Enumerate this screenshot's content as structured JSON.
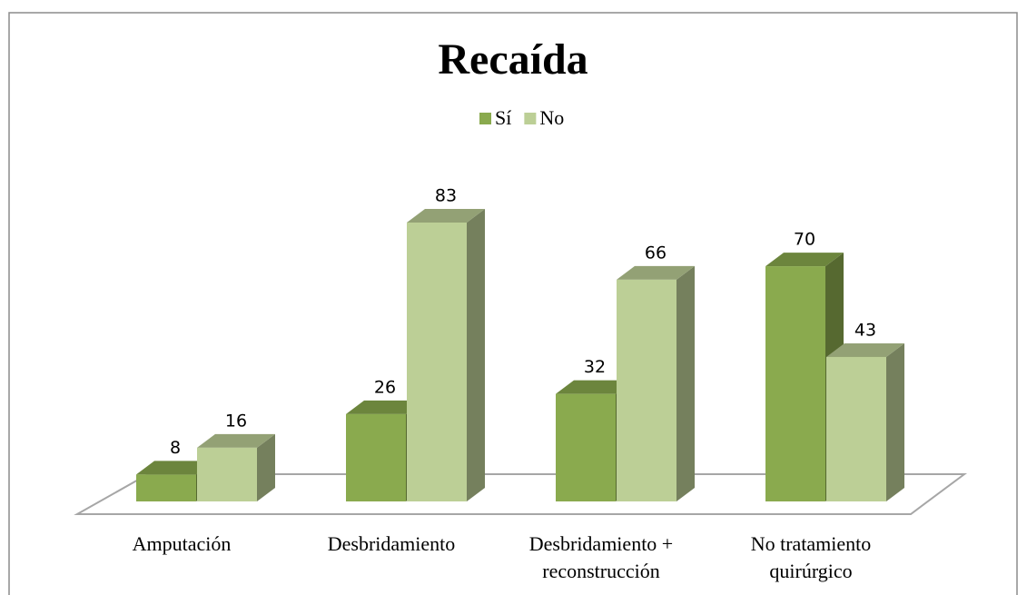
{
  "chart_data": {
    "type": "bar3d",
    "title": "Recaída",
    "categories": [
      "Amputación",
      "Desbridamiento",
      "Desbridamiento + reconstrucción",
      "No tratamiento quirúrgico"
    ],
    "series": [
      {
        "name": "Sí",
        "color": "#8aaa4e",
        "values": [
          8,
          26,
          32,
          70
        ]
      },
      {
        "name": "No",
        "color": "#bccf96",
        "values": [
          16,
          83,
          66,
          43
        ]
      }
    ],
    "legend": "top"
  }
}
